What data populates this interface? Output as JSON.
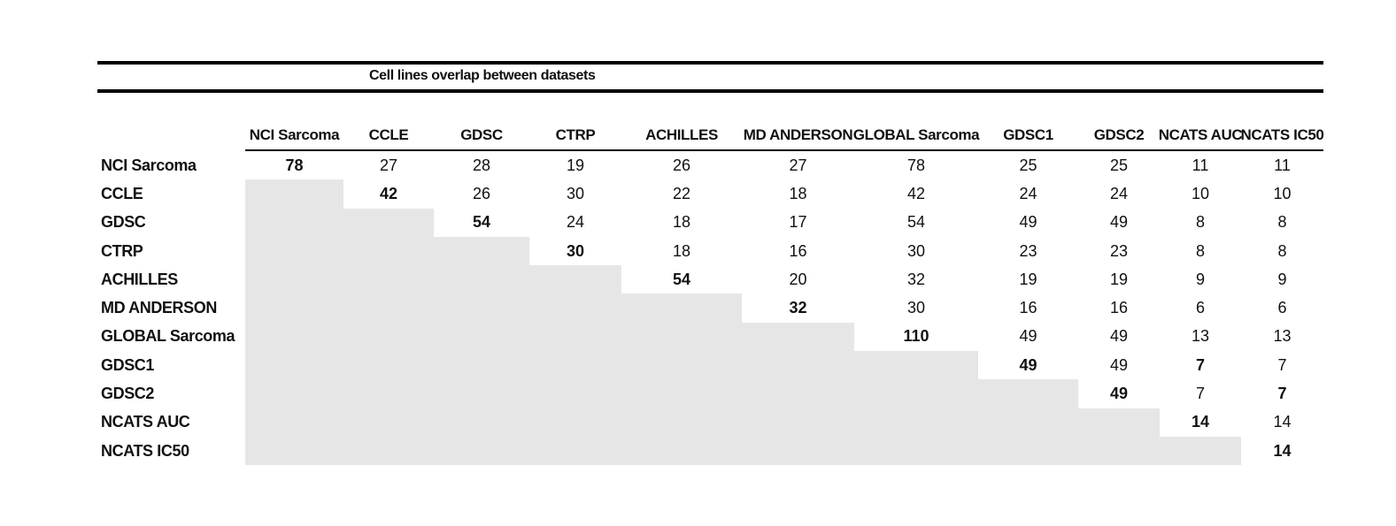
{
  "chart_data": {
    "type": "table",
    "title": "Cell lines overlap between datasets",
    "columns": [
      "NCI Sarcoma",
      "CCLE",
      "GDSC",
      "CTRP",
      "ACHILLES",
      "MD ANDERSON",
      "GLOBAL Sarcoma",
      "GDSC1",
      "GDSC2",
      "NCATS AUC",
      "NCATS IC50"
    ],
    "rows": [
      {
        "label": "NCI Sarcoma",
        "values": [
          78,
          27,
          28,
          19,
          26,
          27,
          78,
          25,
          25,
          11,
          11
        ]
      },
      {
        "label": "CCLE",
        "values": [
          null,
          42,
          26,
          30,
          22,
          18,
          42,
          24,
          24,
          10,
          10
        ]
      },
      {
        "label": "GDSC",
        "values": [
          null,
          null,
          54,
          24,
          18,
          17,
          54,
          49,
          49,
          8,
          8
        ]
      },
      {
        "label": "CTRP",
        "values": [
          null,
          null,
          null,
          30,
          18,
          16,
          30,
          23,
          23,
          8,
          8
        ]
      },
      {
        "label": "ACHILLES",
        "values": [
          null,
          null,
          null,
          null,
          54,
          20,
          32,
          19,
          19,
          9,
          9
        ]
      },
      {
        "label": "MD ANDERSON",
        "values": [
          null,
          null,
          null,
          null,
          null,
          32,
          30,
          16,
          16,
          6,
          6
        ]
      },
      {
        "label": "GLOBAL Sarcoma",
        "values": [
          null,
          null,
          null,
          null,
          null,
          null,
          110,
          49,
          49,
          13,
          13
        ]
      },
      {
        "label": "GDSC1",
        "values": [
          null,
          null,
          null,
          null,
          null,
          null,
          null,
          49,
          49,
          7,
          7
        ]
      },
      {
        "label": "GDSC2",
        "values": [
          null,
          null,
          null,
          null,
          null,
          null,
          null,
          null,
          49,
          7,
          7
        ]
      },
      {
        "label": "NCATS AUC",
        "values": [
          null,
          null,
          null,
          null,
          null,
          null,
          null,
          null,
          null,
          14,
          14
        ]
      },
      {
        "label": "NCATS IC50",
        "values": [
          null,
          null,
          null,
          null,
          null,
          null,
          null,
          null,
          null,
          null,
          14
        ]
      }
    ],
    "bold_cells": [
      [
        0,
        0
      ],
      [
        1,
        1
      ],
      [
        2,
        2
      ],
      [
        3,
        3
      ],
      [
        4,
        4
      ],
      [
        5,
        5
      ],
      [
        6,
        6
      ],
      [
        7,
        7
      ],
      [
        8,
        8
      ],
      [
        9,
        9
      ],
      [
        10,
        10
      ],
      [
        7,
        9
      ],
      [
        8,
        10
      ]
    ],
    "shading": "lower-triangle",
    "colors": {
      "shaded_cell": "#e7e6e6",
      "text": "#111111",
      "rule": "#000000"
    },
    "legend_position": "none",
    "grid": false
  }
}
